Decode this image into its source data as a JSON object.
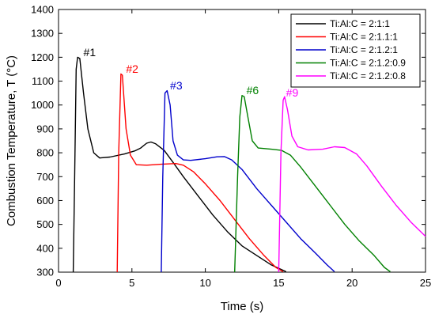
{
  "chart_data": {
    "type": "line",
    "xlabel": "Time (s)",
    "ylabel": "Combustion Temperature, T (°C)",
    "xlim": [
      0,
      25
    ],
    "ylim": [
      300,
      1400
    ],
    "xticks": [
      0,
      5,
      10,
      15,
      20,
      25
    ],
    "yticks": [
      300,
      400,
      500,
      600,
      700,
      800,
      900,
      1000,
      1100,
      1200,
      1300,
      1400
    ],
    "grid": false,
    "legend_position": "top-right",
    "series": [
      {
        "name": "Ti:Al:C = 2:1:1",
        "label": "#1",
        "label_at": [
          1.7,
          1205
        ],
        "color": "#000000",
        "points": [
          [
            1.0,
            300
          ],
          [
            1.1,
            700
          ],
          [
            1.2,
            1150
          ],
          [
            1.3,
            1200
          ],
          [
            1.45,
            1195
          ],
          [
            1.7,
            1050
          ],
          [
            2.0,
            900
          ],
          [
            2.4,
            800
          ],
          [
            2.8,
            778
          ],
          [
            3.5,
            782
          ],
          [
            4.5,
            795
          ],
          [
            5.2,
            808
          ],
          [
            5.6,
            820
          ],
          [
            6.0,
            840
          ],
          [
            6.3,
            845
          ],
          [
            6.6,
            838
          ],
          [
            7.2,
            810
          ],
          [
            7.8,
            760
          ],
          [
            8.5,
            700
          ],
          [
            9.5,
            620
          ],
          [
            10.5,
            540
          ],
          [
            11.5,
            470
          ],
          [
            12.5,
            410
          ],
          [
            13.5,
            370
          ],
          [
            14.5,
            330
          ],
          [
            15.5,
            302
          ]
        ]
      },
      {
        "name": "Ti:Al:C = 2:1.1:1",
        "label": "#2",
        "label_at": [
          4.6,
          1135
        ],
        "color": "#ff0000",
        "points": [
          [
            4.0,
            300
          ],
          [
            4.1,
            800
          ],
          [
            4.25,
            1130
          ],
          [
            4.35,
            1125
          ],
          [
            4.6,
            900
          ],
          [
            4.9,
            790
          ],
          [
            5.3,
            750
          ],
          [
            6.0,
            748
          ],
          [
            7.0,
            752
          ],
          [
            8.0,
            755
          ],
          [
            8.5,
            748
          ],
          [
            9.2,
            720
          ],
          [
            10.0,
            670
          ],
          [
            11.0,
            600
          ],
          [
            12.0,
            520
          ],
          [
            13.0,
            440
          ],
          [
            14.0,
            370
          ],
          [
            14.8,
            320
          ],
          [
            15.3,
            302
          ]
        ]
      },
      {
        "name": "Ti:Al:C = 2:1.2:1",
        "label": "#3",
        "label_at": [
          7.6,
          1065
        ],
        "color": "#0000cc",
        "points": [
          [
            7.0,
            300
          ],
          [
            7.1,
            700
          ],
          [
            7.25,
            1050
          ],
          [
            7.4,
            1060
          ],
          [
            7.6,
            1000
          ],
          [
            7.8,
            850
          ],
          [
            8.1,
            790
          ],
          [
            8.5,
            770
          ],
          [
            9.0,
            768
          ],
          [
            10.0,
            775
          ],
          [
            10.8,
            783
          ],
          [
            11.3,
            784
          ],
          [
            11.8,
            770
          ],
          [
            12.5,
            730
          ],
          [
            13.5,
            650
          ],
          [
            14.5,
            580
          ],
          [
            15.5,
            510
          ],
          [
            16.5,
            440
          ],
          [
            17.5,
            380
          ],
          [
            18.3,
            330
          ],
          [
            18.8,
            302
          ]
        ]
      },
      {
        "name": "Ti:Al:C = 2:1.2:0.9",
        "label": "#6",
        "label_at": [
          12.8,
          1045
        ],
        "color": "#008000",
        "points": [
          [
            12.0,
            300
          ],
          [
            12.2,
            700
          ],
          [
            12.35,
            950
          ],
          [
            12.5,
            1040
          ],
          [
            12.65,
            1035
          ],
          [
            12.9,
            950
          ],
          [
            13.2,
            850
          ],
          [
            13.6,
            820
          ],
          [
            14.5,
            815
          ],
          [
            15.2,
            810
          ],
          [
            15.8,
            790
          ],
          [
            16.5,
            740
          ],
          [
            17.5,
            660
          ],
          [
            18.5,
            580
          ],
          [
            19.5,
            500
          ],
          [
            20.5,
            430
          ],
          [
            21.5,
            370
          ],
          [
            22.2,
            320
          ],
          [
            22.6,
            302
          ]
        ]
      },
      {
        "name": "Ti:Al:C = 2:1.2:0.8",
        "label": "#9",
        "label_at": [
          15.5,
          1035
        ],
        "color": "#ff00ff",
        "points": [
          [
            15.0,
            300
          ],
          [
            15.15,
            800
          ],
          [
            15.3,
            1020
          ],
          [
            15.4,
            1035
          ],
          [
            15.6,
            980
          ],
          [
            15.9,
            870
          ],
          [
            16.3,
            825
          ],
          [
            17.0,
            812
          ],
          [
            18.0,
            815
          ],
          [
            18.8,
            825
          ],
          [
            19.5,
            822
          ],
          [
            20.3,
            795
          ],
          [
            21.0,
            745
          ],
          [
            22.0,
            660
          ],
          [
            23.0,
            580
          ],
          [
            24.0,
            510
          ],
          [
            25.0,
            450
          ]
        ]
      }
    ]
  }
}
